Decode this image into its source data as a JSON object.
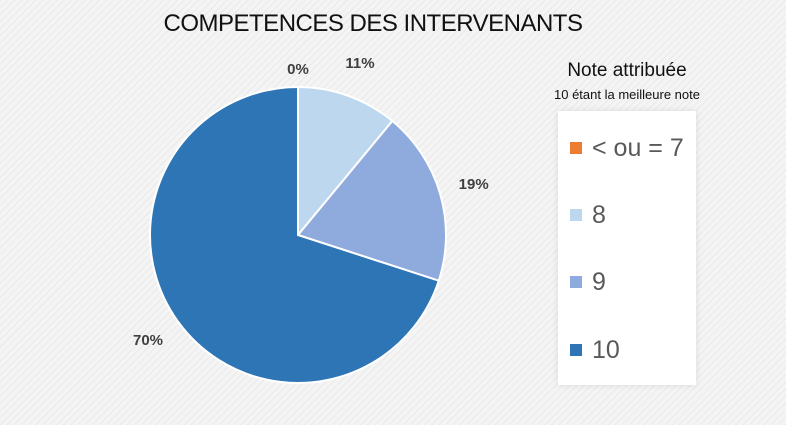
{
  "chart_data": {
    "type": "pie",
    "title": "COMPETENCES DES INTERVENANTS",
    "legend_title": "Note attribuée",
    "legend_subtitle": "10 étant la meilleure note",
    "legend_position": "right",
    "categories": [
      "< ou = 7",
      "8",
      "9",
      "10"
    ],
    "values": [
      0,
      11,
      19,
      70
    ],
    "data_labels": [
      "0%",
      "11%",
      "19%",
      "70%"
    ],
    "colors": [
      "#ed7d31",
      "#bdd7ee",
      "#8faadc",
      "#2e75b6"
    ]
  }
}
